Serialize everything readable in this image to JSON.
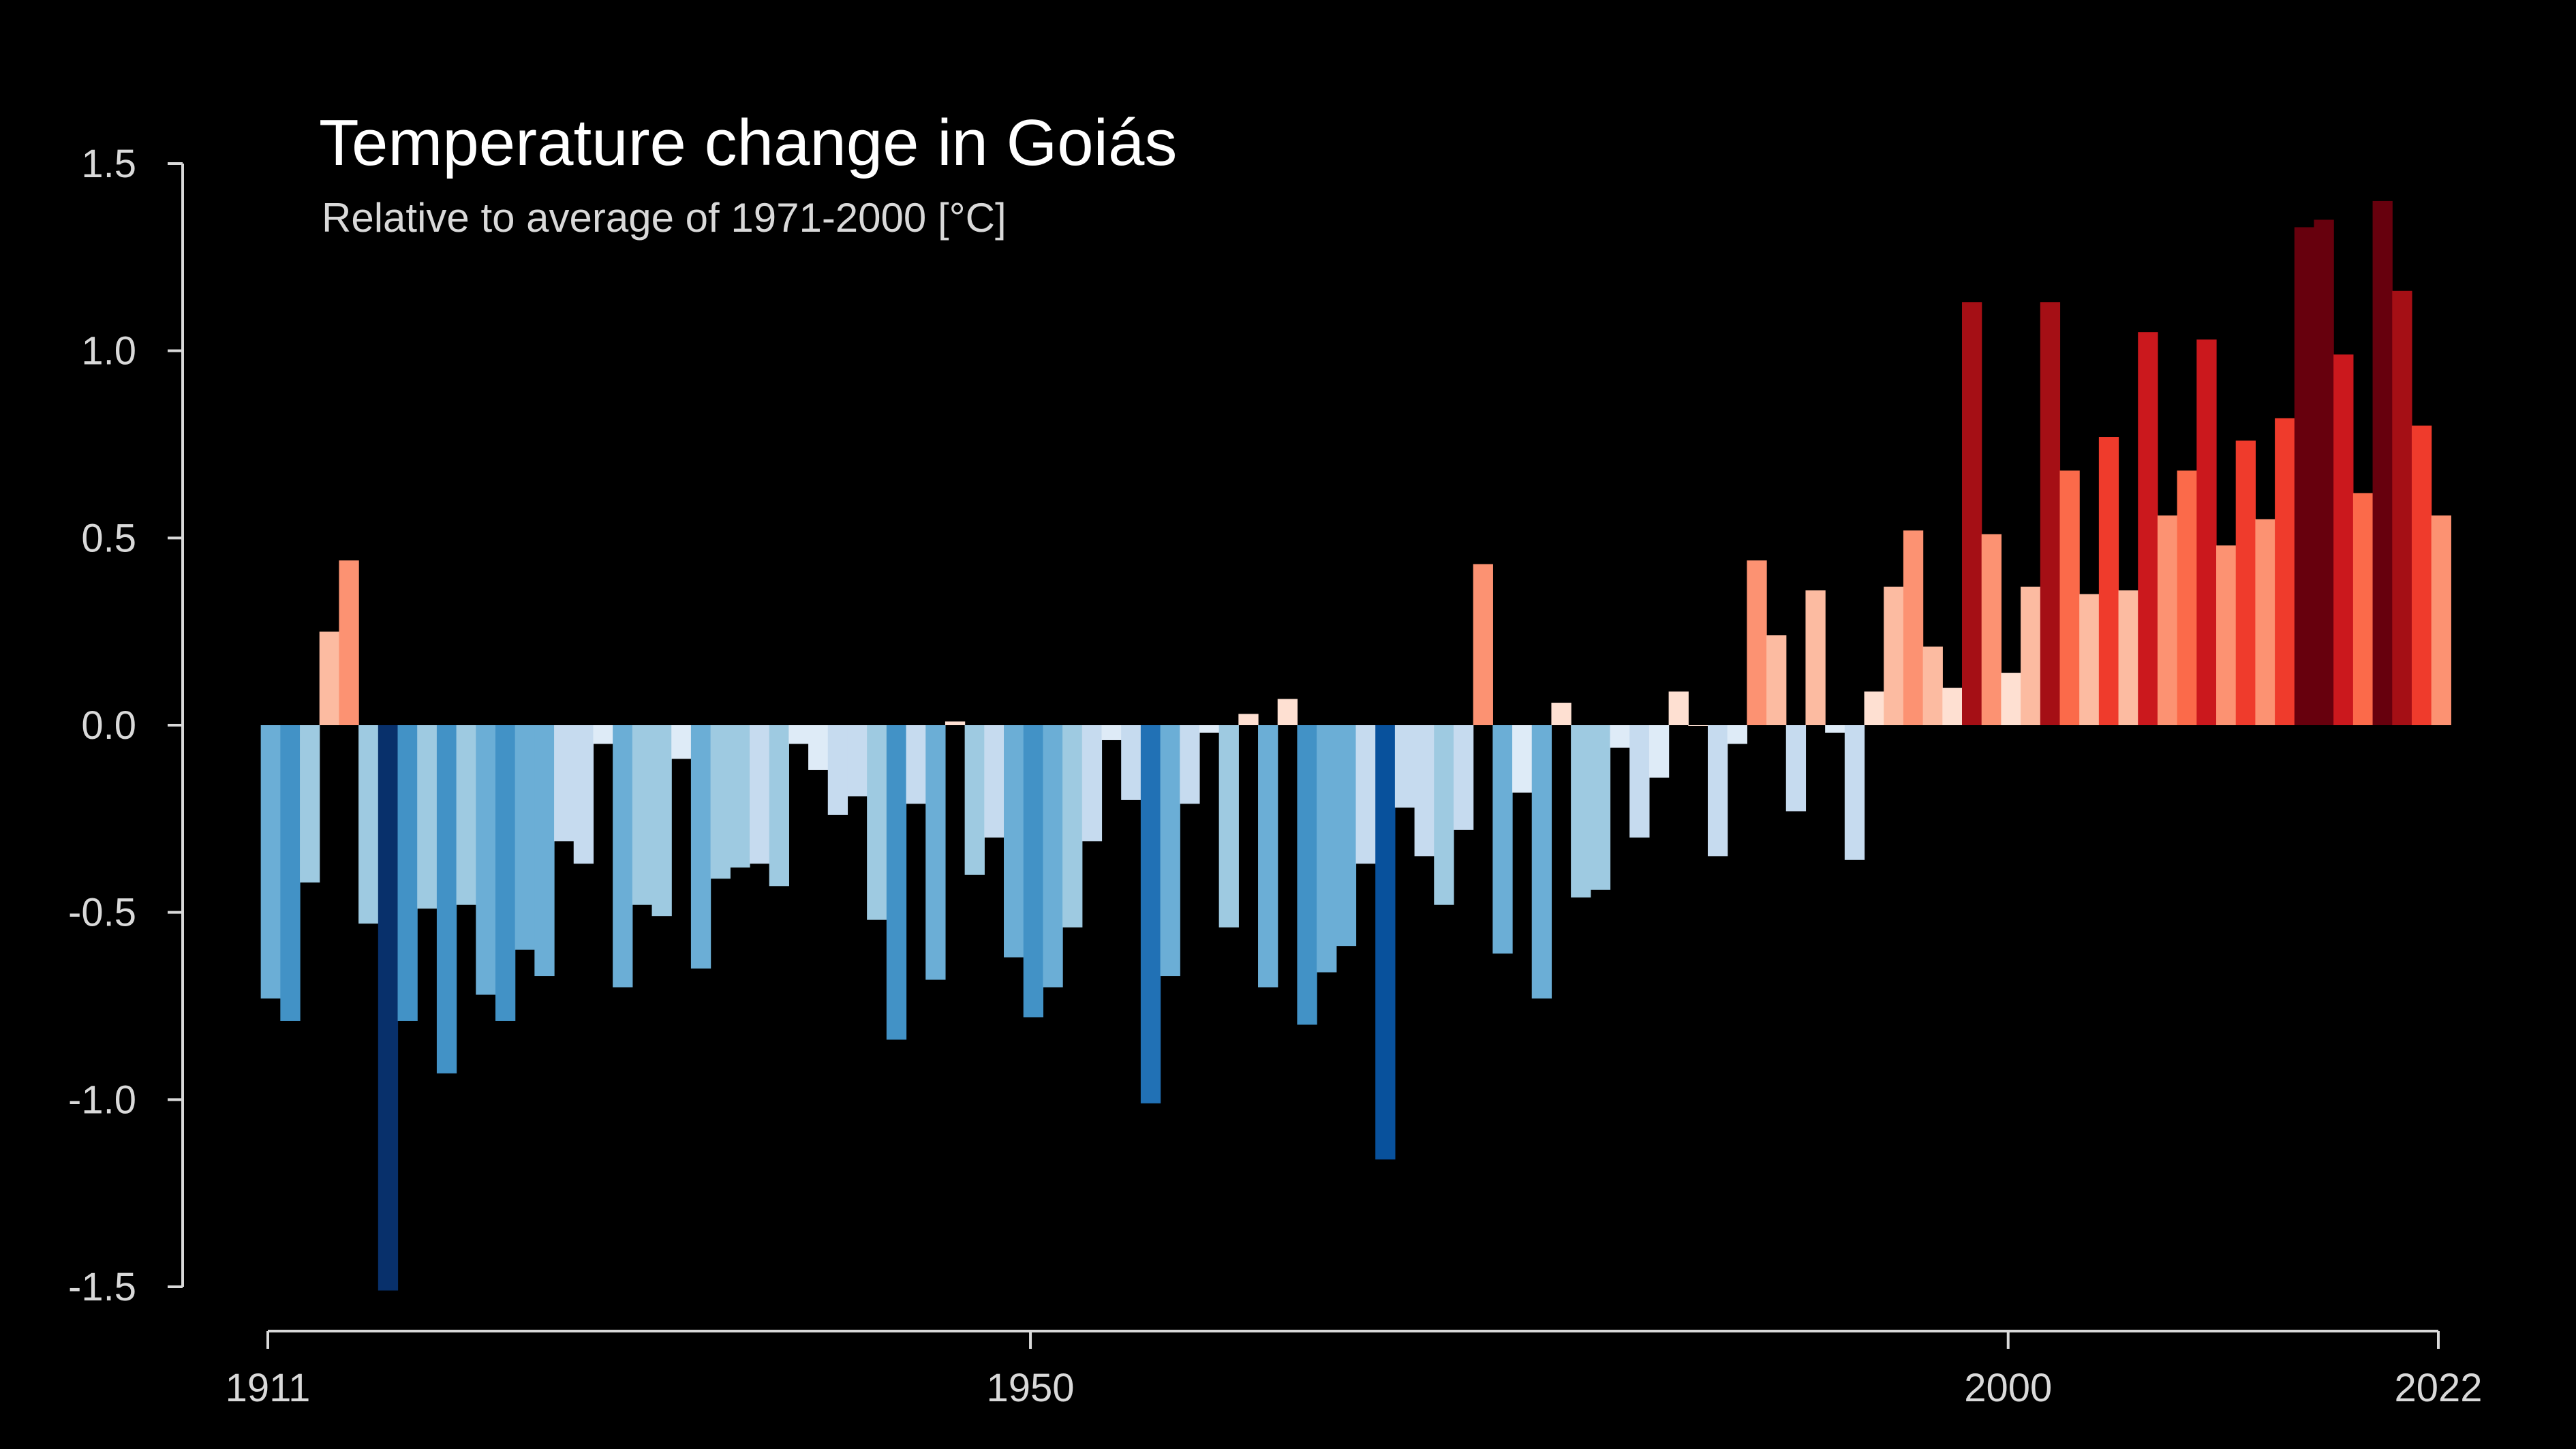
{
  "chart_data": {
    "type": "bar",
    "title": "Temperature change in Goiás",
    "subtitle": "Relative to average of 1971-2000  [°C]",
    "xlabel": "",
    "ylabel": "",
    "x_start": 1911,
    "x_end": 2022,
    "ylim": [
      -1.5,
      1.5
    ],
    "y_ticks": [
      "1.5",
      "1.0",
      "0.5",
      "0.0",
      "-0.5",
      "-1.0",
      "-1.5"
    ],
    "x_ticks": [
      "1911",
      "1950",
      "2000",
      "2022"
    ],
    "grid": false,
    "legend": "none",
    "colors": {
      "background": "#000000",
      "axis": "#d9d9d9",
      "text": "#ffffff",
      "scale": [
        "#08306b",
        "#08519c",
        "#2171b5",
        "#4292c6",
        "#6baed6",
        "#9ecae1",
        "#c6dbef",
        "#deebf7",
        "#fee0d2",
        "#fcbba1",
        "#fc9272",
        "#fb6a4a",
        "#ef3b2c",
        "#cb181d",
        "#a50f15",
        "#67000d"
      ]
    },
    "series": [
      {
        "values": [
          -0.73,
          -0.79,
          -0.42,
          0.25,
          0.44,
          -0.53,
          -1.51,
          -0.79,
          -0.49,
          -0.93,
          -0.48,
          -0.72,
          -0.79,
          -0.6,
          -0.67,
          -0.31,
          -0.37,
          -0.05,
          -0.7,
          -0.48,
          -0.51,
          -0.09,
          -0.65,
          -0.41,
          -0.38,
          -0.37,
          -0.43,
          -0.05,
          -0.12,
          -0.24,
          -0.19,
          -0.52,
          -0.84,
          -0.21,
          -0.68,
          0.01,
          -0.4,
          -0.3,
          -0.62,
          -0.78,
          -0.7,
          -0.54,
          -0.31,
          -0.04,
          -0.2,
          -1.01,
          -0.67,
          -0.21,
          -0.02,
          -0.54,
          0.03,
          -0.7,
          0.07,
          -0.8,
          -0.66,
          -0.59,
          -0.37,
          -1.16,
          -0.22,
          -0.35,
          -0.48,
          -0.28,
          0.43,
          -0.61,
          -0.18,
          -0.73,
          0.06,
          -0.46,
          -0.44,
          -0.06,
          -0.3,
          -0.14,
          0.09,
          0.0,
          -0.35,
          -0.05,
          0.44,
          0.24,
          -0.23,
          0.36,
          -0.02,
          -0.36,
          0.09,
          0.37,
          0.52,
          0.21,
          0.1,
          1.13,
          0.51,
          0.14,
          0.37,
          1.13,
          0.68,
          0.35,
          0.77,
          0.36,
          1.05,
          0.56,
          0.68,
          1.03,
          0.48,
          0.76,
          0.55,
          0.82,
          1.33,
          1.35,
          0.99,
          0.62,
          1.4,
          1.16,
          0.8,
          0.56
        ]
      }
    ]
  }
}
